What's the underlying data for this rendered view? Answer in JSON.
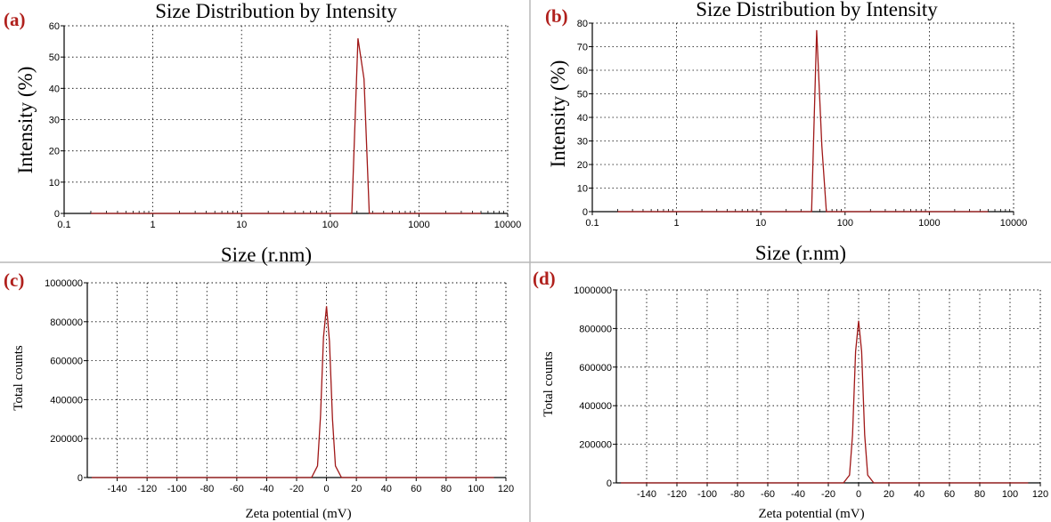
{
  "figure": {
    "divider_color": "#b8b8b8",
    "line_color": "#a01818"
  },
  "chart_data": [
    {
      "panel_label": "(a)",
      "type": "line",
      "title": "Size Distribution by Intensity",
      "xlabel": "Size (r.nm)",
      "ylabel": "Intensity (%)",
      "xscale": "log",
      "xlim": [
        0.1,
        10000
      ],
      "ylim": [
        0,
        60
      ],
      "xticks": [
        0.1,
        1,
        10,
        100,
        1000,
        10000
      ],
      "xtick_labels": [
        "0.1",
        "1",
        "10",
        "100",
        "1000",
        "10000"
      ],
      "yticks": [
        0,
        10,
        20,
        30,
        40,
        50,
        60
      ],
      "ytick_labels": [
        "0",
        "10",
        "20",
        "30",
        "40",
        "50",
        "60"
      ],
      "grid": true,
      "series": [
        {
          "x": [
            0.2,
            150,
            175,
            205,
            240,
            275,
            290,
            5000
          ],
          "y": [
            0,
            0,
            0,
            56,
            43,
            0,
            0,
            0
          ]
        }
      ]
    },
    {
      "panel_label": "(b)",
      "type": "line",
      "title": "Size Distribution by Intensity",
      "xlabel": "Size (r.nm)",
      "ylabel": "Intensity (%)",
      "xscale": "log",
      "xlim": [
        0.1,
        10000
      ],
      "ylim": [
        0,
        80
      ],
      "xticks": [
        0.1,
        1,
        10,
        100,
        1000,
        10000
      ],
      "xtick_labels": [
        "0.1",
        "1",
        "10",
        "100",
        "1000",
        "10000"
      ],
      "yticks": [
        0,
        10,
        20,
        30,
        40,
        50,
        60,
        70,
        80
      ],
      "ytick_labels": [
        "0",
        "10",
        "20",
        "30",
        "40",
        "50",
        "60",
        "70",
        "80"
      ],
      "grid": true,
      "series": [
        {
          "x": [
            0.2,
            35,
            40,
            46,
            53,
            60,
            65,
            5000
          ],
          "y": [
            0,
            0,
            0,
            77,
            28,
            0,
            0,
            0
          ]
        }
      ]
    },
    {
      "panel_label": "(c)",
      "type": "line",
      "xlabel": "Zeta potential (mV)",
      "ylabel": "Total counts",
      "xlim": [
        -160,
        120
      ],
      "ylim": [
        0,
        1000000
      ],
      "xticks": [
        -140,
        -120,
        -100,
        -80,
        -60,
        -40,
        -20,
        0,
        20,
        40,
        60,
        80,
        100,
        120
      ],
      "xtick_labels": [
        "-140",
        "-120",
        "-100",
        "-80",
        "-60",
        "-40",
        "-20",
        "0",
        "20",
        "40",
        "60",
        "80",
        "100",
        "120"
      ],
      "yticks": [
        0,
        200000,
        400000,
        600000,
        800000,
        1000000
      ],
      "ytick_labels": [
        "0",
        "200000",
        "400000",
        "600000",
        "800000",
        "1000000"
      ],
      "grid": true,
      "series": [
        {
          "x": [
            -157,
            -10,
            -6,
            -4,
            -2,
            0,
            2,
            4,
            6,
            10,
            112
          ],
          "y": [
            0,
            0,
            60000,
            320000,
            720000,
            880000,
            700000,
            300000,
            60000,
            0,
            0
          ]
        }
      ]
    },
    {
      "panel_label": "(d)",
      "type": "line",
      "xlabel": "Zeta potential (mV)",
      "ylabel": "Total counts",
      "xlim": [
        -160,
        120
      ],
      "ylim": [
        0,
        1000000
      ],
      "xticks": [
        -140,
        -120,
        -100,
        -80,
        -60,
        -40,
        -20,
        0,
        20,
        40,
        60,
        80,
        100,
        120
      ],
      "xtick_labels": [
        "-140",
        "-120",
        "-100",
        "-80",
        "-60",
        "-40",
        "-20",
        "0",
        "20",
        "40",
        "60",
        "80",
        "100",
        "120"
      ],
      "yticks": [
        0,
        200000,
        400000,
        600000,
        800000,
        1000000
      ],
      "ytick_labels": [
        "0",
        "200000",
        "400000",
        "600000",
        "800000",
        "1000000"
      ],
      "grid": true,
      "series": [
        {
          "x": [
            -157,
            -10,
            -6,
            -4,
            -2,
            0,
            2,
            4,
            6,
            10,
            112
          ],
          "y": [
            0,
            0,
            40000,
            250000,
            680000,
            840000,
            680000,
            250000,
            40000,
            0,
            0
          ]
        }
      ]
    }
  ]
}
